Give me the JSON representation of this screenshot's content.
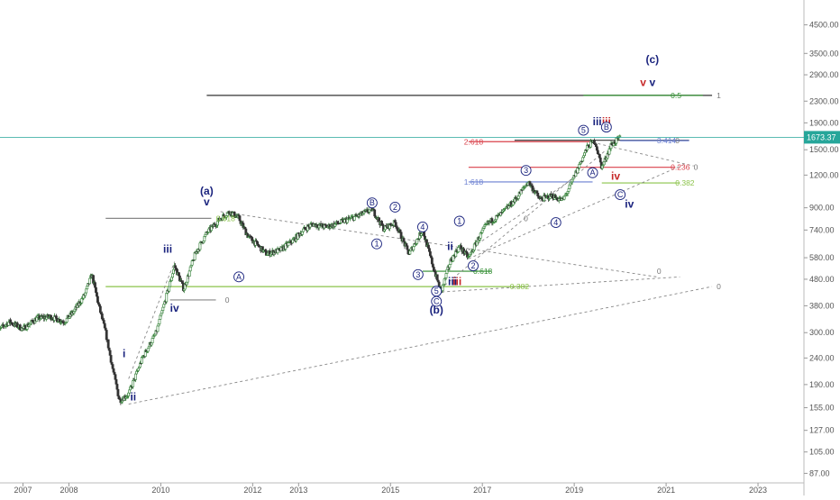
{
  "chart_data": {
    "type": "candlestick",
    "scale": "log",
    "grid": false,
    "legend": "none",
    "x_ticks": [
      "2007",
      "2008",
      "2010",
      "2012",
      "2013",
      "2015",
      "2017",
      "2019",
      "2021",
      "2023"
    ],
    "y_ticks": [
      "4500.00",
      "3500.00",
      "2900.00",
      "2300.00",
      "1900.00",
      "1500.00",
      "1200.00",
      "900.00",
      "740.00",
      "580.00",
      "480.00",
      "380.00",
      "300.00",
      "240.00",
      "190.00",
      "155.00",
      "127.00",
      "105.00",
      "87.00"
    ],
    "last_price": "1673.37",
    "price_path": [
      {
        "date": 2006.4,
        "price": 300
      },
      {
        "date": 2006.7,
        "price": 330
      },
      {
        "date": 2007.0,
        "price": 310
      },
      {
        "date": 2007.3,
        "price": 340
      },
      {
        "date": 2007.6,
        "price": 345
      },
      {
        "date": 2007.9,
        "price": 330
      },
      {
        "date": 2008.1,
        "price": 360
      },
      {
        "date": 2008.35,
        "price": 420
      },
      {
        "date": 2008.5,
        "price": 500
      },
      {
        "date": 2008.65,
        "price": 380
      },
      {
        "date": 2008.8,
        "price": 300
      },
      {
        "date": 2008.95,
        "price": 220
      },
      {
        "date": 2009.1,
        "price": 165
      },
      {
        "date": 2009.3,
        "price": 175
      },
      {
        "date": 2009.6,
        "price": 240
      },
      {
        "date": 2009.9,
        "price": 300
      },
      {
        "date": 2010.15,
        "price": 430
      },
      {
        "date": 2010.3,
        "price": 540
      },
      {
        "date": 2010.5,
        "price": 440
      },
      {
        "date": 2010.75,
        "price": 600
      },
      {
        "date": 2011.0,
        "price": 720
      },
      {
        "date": 2011.3,
        "price": 820
      },
      {
        "date": 2011.5,
        "price": 870
      },
      {
        "date": 2011.7,
        "price": 820
      },
      {
        "date": 2011.9,
        "price": 700
      },
      {
        "date": 2012.1,
        "price": 650
      },
      {
        "date": 2012.3,
        "price": 600
      },
      {
        "date": 2012.6,
        "price": 620
      },
      {
        "date": 2012.9,
        "price": 680
      },
      {
        "date": 2013.1,
        "price": 740
      },
      {
        "date": 2013.3,
        "price": 780
      },
      {
        "date": 2013.6,
        "price": 760
      },
      {
        "date": 2013.9,
        "price": 790
      },
      {
        "date": 2014.3,
        "price": 840
      },
      {
        "date": 2014.6,
        "price": 890
      },
      {
        "date": 2014.85,
        "price": 750
      },
      {
        "date": 2015.1,
        "price": 790
      },
      {
        "date": 2015.4,
        "price": 600
      },
      {
        "date": 2015.7,
        "price": 740
      },
      {
        "date": 2015.95,
        "price": 520
      },
      {
        "date": 2016.1,
        "price": 430
      },
      {
        "date": 2016.3,
        "price": 560
      },
      {
        "date": 2016.5,
        "price": 640
      },
      {
        "date": 2016.7,
        "price": 580
      },
      {
        "date": 2016.9,
        "price": 680
      },
      {
        "date": 2017.1,
        "price": 780
      },
      {
        "date": 2017.4,
        "price": 850
      },
      {
        "date": 2017.7,
        "price": 960
      },
      {
        "date": 2018.0,
        "price": 1130
      },
      {
        "date": 2018.25,
        "price": 970
      },
      {
        "date": 2018.5,
        "price": 1000
      },
      {
        "date": 2018.75,
        "price": 960
      },
      {
        "date": 2018.9,
        "price": 1080
      },
      {
        "date": 2019.1,
        "price": 1300
      },
      {
        "date": 2019.3,
        "price": 1550
      },
      {
        "date": 2019.45,
        "price": 1620
      },
      {
        "date": 2019.6,
        "price": 1280
      },
      {
        "date": 2019.8,
        "price": 1560
      },
      {
        "date": 2020.0,
        "price": 1673
      }
    ],
    "horizontal_levels": [
      {
        "label": "1",
        "price": 2420,
        "from": 2011.0,
        "to": 2022.0,
        "color": "#333333"
      },
      {
        "label": "0.5",
        "price": 2420,
        "from": 2019.2,
        "to": 2021.8,
        "color": "#2e8b2e"
      },
      {
        "label": "0",
        "price": 1630,
        "from": 2017.7,
        "to": 2021.5,
        "color": "#333333"
      },
      {
        "label": "3.414",
        "price": 1625,
        "from": 2020.0,
        "to": 2021.5,
        "color": "#6a7fd1"
      },
      {
        "label": "2.618",
        "price": 1610,
        "from": 2016.7,
        "to": 2019.4,
        "color": "#d9404a"
      },
      {
        "label": "0.236",
        "price": 1285,
        "from": 2016.7,
        "to": 2021.2,
        "color": "#d9404a"
      },
      {
        "label": "1.618",
        "price": 1130,
        "from": 2016.7,
        "to": 2019.4,
        "color": "#6a7fd1"
      },
      {
        "label": "0.382",
        "price": 1120,
        "from": 2019.6,
        "to": 2021.3,
        "color": "#8bc34a"
      },
      {
        "label": "0.618",
        "price": 820,
        "from": 2008.8,
        "to": 2011.1,
        "color": "#888888"
      },
      {
        "label": "0.618",
        "price": 515,
        "from": 2015.7,
        "to": 2017.2,
        "color": "#2e8b2e"
      },
      {
        "label": "0.382",
        "price": 450,
        "from": 2008.8,
        "to": 2018.0,
        "color": "#8bc34a"
      },
      {
        "label": "0",
        "price": 400,
        "from": 2010.2,
        "to": 2011.2,
        "color": "#888888"
      }
    ],
    "fib_labels": [
      {
        "text": "2.618",
        "date": 2016.6,
        "price": 1610,
        "color": "#d9404a"
      },
      {
        "text": "1.618",
        "date": 2016.6,
        "price": 1130,
        "color": "#6a7fd1"
      },
      {
        "text": "3.414",
        "date": 2020.8,
        "price": 1625,
        "color": "#6a7fd1"
      },
      {
        "text": "0",
        "date": 2021.2,
        "price": 1625,
        "color": "#777777"
      },
      {
        "text": "0.236",
        "date": 2021.1,
        "price": 1285,
        "color": "#d9404a"
      },
      {
        "text": "0",
        "date": 2021.6,
        "price": 1285,
        "color": "#777777"
      },
      {
        "text": "0.382",
        "date": 2021.2,
        "price": 1120,
        "color": "#8bc34a"
      },
      {
        "text": "0.5",
        "date": 2021.1,
        "price": 2420,
        "color": "#2e8b2e"
      },
      {
        "text": "1",
        "date": 2022.1,
        "price": 2420,
        "color": "#777777"
      },
      {
        "text": "0.618",
        "date": 2011.2,
        "price": 820,
        "color": "#8bc34a"
      },
      {
        "text": "0",
        "date": 2011.4,
        "price": 400,
        "color": "#777777"
      },
      {
        "text": "0.618",
        "date": 2016.8,
        "price": 515,
        "color": "#2e8b2e"
      },
      {
        "text": "0.382",
        "date": 2017.6,
        "price": 450,
        "color": "#8bc34a"
      },
      {
        "text": "0",
        "date": 2020.8,
        "price": 515,
        "color": "#777777"
      },
      {
        "text": "0",
        "date": 2022.1,
        "price": 450,
        "color": "#777777"
      },
      {
        "text": "0",
        "date": 2017.9,
        "price": 820,
        "color": "#777777"
      }
    ],
    "wave_labels": [
      {
        "text": "(c)",
        "date": 2020.7,
        "price": 3220,
        "color": "#1a237e"
      },
      {
        "text": "v",
        "date": 2020.5,
        "price": 2630,
        "color": "#c62828"
      },
      {
        "text": "v",
        "date": 2020.7,
        "price": 2630,
        "color": "#1a237e"
      },
      {
        "text": "iii",
        "date": 2019.5,
        "price": 1860,
        "color": "#1a237e"
      },
      {
        "text": "iii",
        "date": 2019.7,
        "price": 1860,
        "color": "#c62828"
      },
      {
        "text": "iv",
        "date": 2019.9,
        "price": 1150,
        "color": "#c62828"
      },
      {
        "text": "iv",
        "date": 2020.2,
        "price": 900,
        "color": "#1a237e"
      },
      {
        "text": "(a)",
        "date": 2011.0,
        "price": 1010,
        "color": "#1a237e"
      },
      {
        "text": "v",
        "date": 2011.0,
        "price": 920,
        "color": "#1a237e"
      },
      {
        "text": "iii",
        "date": 2010.15,
        "price": 605,
        "color": "#1a237e"
      },
      {
        "text": "iv",
        "date": 2010.3,
        "price": 360,
        "color": "#1a237e"
      },
      {
        "text": "i",
        "date": 2009.2,
        "price": 242,
        "color": "#1a237e"
      },
      {
        "text": "ii",
        "date": 2009.4,
        "price": 165,
        "color": "#1a237e"
      },
      {
        "text": "ii",
        "date": 2016.3,
        "price": 620,
        "color": "#1a237e"
      },
      {
        "text": "iii",
        "date": 2016.35,
        "price": 455,
        "color": "#1a237e"
      },
      {
        "text": "iii",
        "date": 2016.45,
        "price": 455,
        "color": "#c62828"
      },
      {
        "text": "(b)",
        "date": 2016.0,
        "price": 355,
        "color": "#1a237e"
      }
    ],
    "circled_labels": [
      {
        "text": "B",
        "date": 2014.6,
        "price": 940
      },
      {
        "text": "1",
        "date": 2014.7,
        "price": 655
      },
      {
        "text": "2",
        "date": 2015.1,
        "price": 905
      },
      {
        "text": "4",
        "date": 2015.7,
        "price": 760
      },
      {
        "text": "3",
        "date": 2015.6,
        "price": 500
      },
      {
        "text": "5",
        "date": 2016.0,
        "price": 432
      },
      {
        "text": "C",
        "date": 2016.0,
        "price": 395
      },
      {
        "text": "1",
        "date": 2016.5,
        "price": 800
      },
      {
        "text": "2",
        "date": 2016.8,
        "price": 540
      },
      {
        "text": "3",
        "date": 2017.95,
        "price": 1250
      },
      {
        "text": "4",
        "date": 2018.6,
        "price": 790
      },
      {
        "text": "5",
        "date": 2019.2,
        "price": 1780
      },
      {
        "text": "B",
        "date": 2019.7,
        "price": 1830
      },
      {
        "text": "A",
        "date": 2019.4,
        "price": 1225
      },
      {
        "text": "C",
        "date": 2020.0,
        "price": 1010
      },
      {
        "text": "A",
        "date": 2011.7,
        "price": 490
      }
    ],
    "dashed_lines": [
      {
        "from": [
          2009.3,
          160
        ],
        "to": [
          2022.0,
          450
        ]
      },
      {
        "from": [
          2016.0,
          428
        ],
        "to": [
          2019.7,
          1500
        ]
      },
      {
        "from": [
          2016.0,
          428
        ],
        "to": [
          2021.3,
          490
        ]
      },
      {
        "from": [
          2011.3,
          870
        ],
        "to": [
          2020.8,
          490
        ]
      },
      {
        "from": [
          2016.7,
          575
        ],
        "to": [
          2021.4,
          1320
        ]
      },
      {
        "from": [
          2019.4,
          1600
        ],
        "to": [
          2021.6,
          1300
        ]
      },
      {
        "from": [
          2016.7,
          620
        ],
        "to": [
          2018.9,
          1140
        ]
      },
      {
        "from": [
          2009.3,
          200
        ],
        "to": [
          2010.3,
          560
        ]
      }
    ]
  }
}
